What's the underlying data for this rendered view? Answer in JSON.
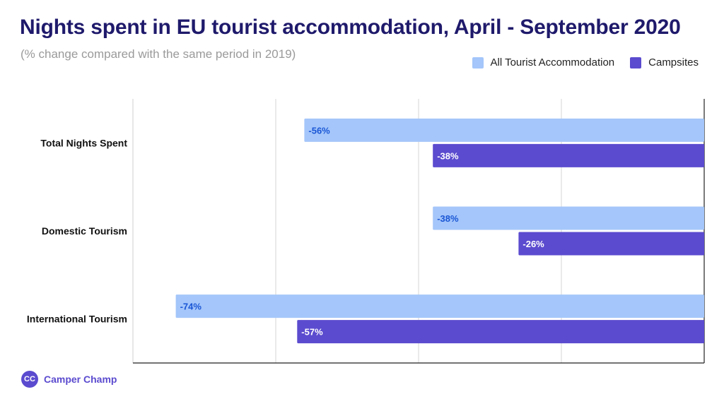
{
  "chart_data": {
    "type": "bar",
    "orientation": "horizontal",
    "title": "Nights spent in EU tourist accommodation, April - September 2020",
    "subtitle": "(% change compared with the same period in 2019)",
    "categories": [
      "Total Nights Spent",
      "Domestic Tourism",
      "International Tourism"
    ],
    "series": [
      {
        "name": "All Tourist Accommodation",
        "values": [
          -56,
          -38,
          -74
        ],
        "labels": [
          "-56%",
          "-38%",
          "-74%"
        ],
        "color": "#a4c6fa",
        "label_color": "#1a56d6"
      },
      {
        "name": "Campsites",
        "values": [
          -38,
          -26,
          -57
        ],
        "labels": [
          "-38%",
          "-26%",
          "-57%"
        ],
        "color": "#5b4bcf",
        "label_color": "#ffffff"
      }
    ],
    "xlim": [
      -80,
      0
    ],
    "grid": true,
    "legend_position": "top-right"
  },
  "brand": {
    "logo_text": "CC",
    "name": "Camper Champ"
  }
}
